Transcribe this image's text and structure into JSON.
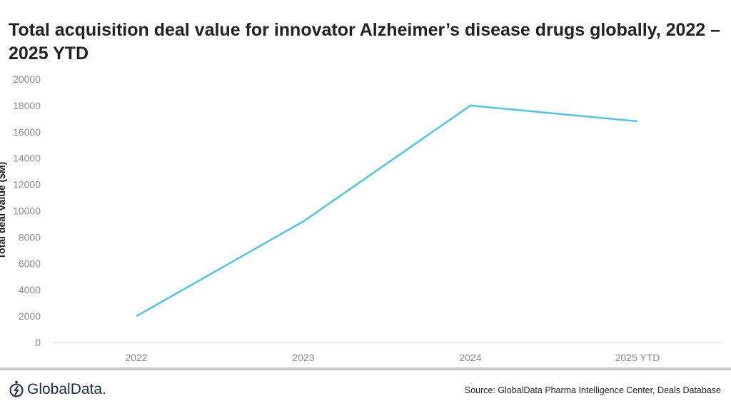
{
  "chart_data": {
    "type": "line",
    "title": "Total acquisition deal value for innovator Alzheimer’s disease drugs globally, 2022 – 2025 YTD",
    "ylabel": "Total deal value ($M)",
    "xlabel": "",
    "categories": [
      "2022",
      "2023",
      "2024",
      "2025 YTD"
    ],
    "values": [
      2000,
      9200,
      18000,
      16800
    ],
    "ylim": [
      0,
      20000
    ],
    "yticks": [
      "0",
      "2000",
      "4000",
      "6000",
      "8000",
      "10000",
      "12000",
      "14000",
      "16000",
      "18000",
      "20000"
    ],
    "grid": false,
    "color": "#4cc6e8"
  },
  "footer": {
    "logo": "GlobalData.",
    "source": "Source: GlobalData Pharma Intelligence Center, Deals Database"
  }
}
